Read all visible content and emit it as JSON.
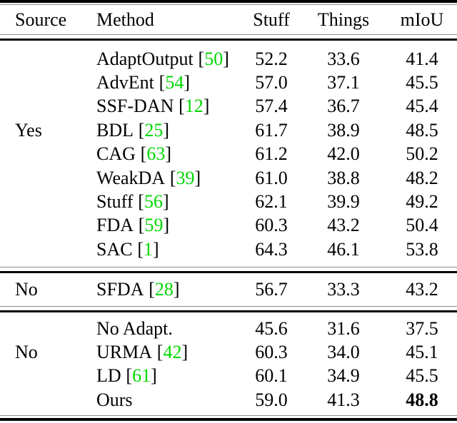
{
  "colors": {
    "citation_green": "#00d800",
    "text": "#000000"
  },
  "citation_brackets": {
    "open": "[",
    "close": "]"
  },
  "header": {
    "source": "Source",
    "method": "Method",
    "stuff": "Stuff",
    "things": "Things",
    "miou": "mIoU"
  },
  "sections": [
    {
      "source_label": "Yes",
      "rows": [
        {
          "method": "AdaptOutput",
          "cite": "50",
          "stuff": "52.2",
          "things": "33.6",
          "miou": "41.4"
        },
        {
          "method": "AdvEnt",
          "cite": "54",
          "stuff": "57.0",
          "things": "37.1",
          "miou": "45.5"
        },
        {
          "method": "SSF-DAN",
          "cite": "12",
          "stuff": "57.4",
          "things": "36.7",
          "miou": "45.4"
        },
        {
          "method": "BDL",
          "cite": "25",
          "stuff": "61.7",
          "things": "38.9",
          "miou": "48.5"
        },
        {
          "method": "CAG",
          "cite": "63",
          "stuff": "61.2",
          "things": "42.0",
          "miou": "50.2"
        },
        {
          "method": "WeakDA",
          "cite": "39",
          "stuff": "61.0",
          "things": "38.8",
          "miou": "48.2"
        },
        {
          "method": "Stuff",
          "cite": "56",
          "stuff": "62.1",
          "things": "39.9",
          "miou": "49.2"
        },
        {
          "method": "FDA",
          "cite": "59",
          "stuff": "60.3",
          "things": "43.2",
          "miou": "50.4"
        },
        {
          "method": "SAC",
          "cite": "1",
          "stuff": "64.3",
          "things": "46.1",
          "miou": "53.8"
        }
      ]
    },
    {
      "source_label": "No",
      "rows": [
        {
          "method": "SFDA",
          "cite": "28",
          "stuff": "56.7",
          "things": "33.3",
          "miou": "43.2"
        }
      ]
    },
    {
      "source_label": "No",
      "rows": [
        {
          "method": "No Adapt.",
          "stuff": "45.6",
          "things": "31.6",
          "miou": "37.5"
        },
        {
          "method": "URMA",
          "cite": "42",
          "stuff": "60.3",
          "things": "34.0",
          "miou": "45.1"
        },
        {
          "method": "LD",
          "cite": "61",
          "stuff": "60.1",
          "things": "34.9",
          "miou": "45.5"
        },
        {
          "method": "Ours",
          "stuff": "59.0",
          "things": "41.3",
          "miou": "48.8",
          "miou_bold": true
        }
      ]
    }
  ]
}
